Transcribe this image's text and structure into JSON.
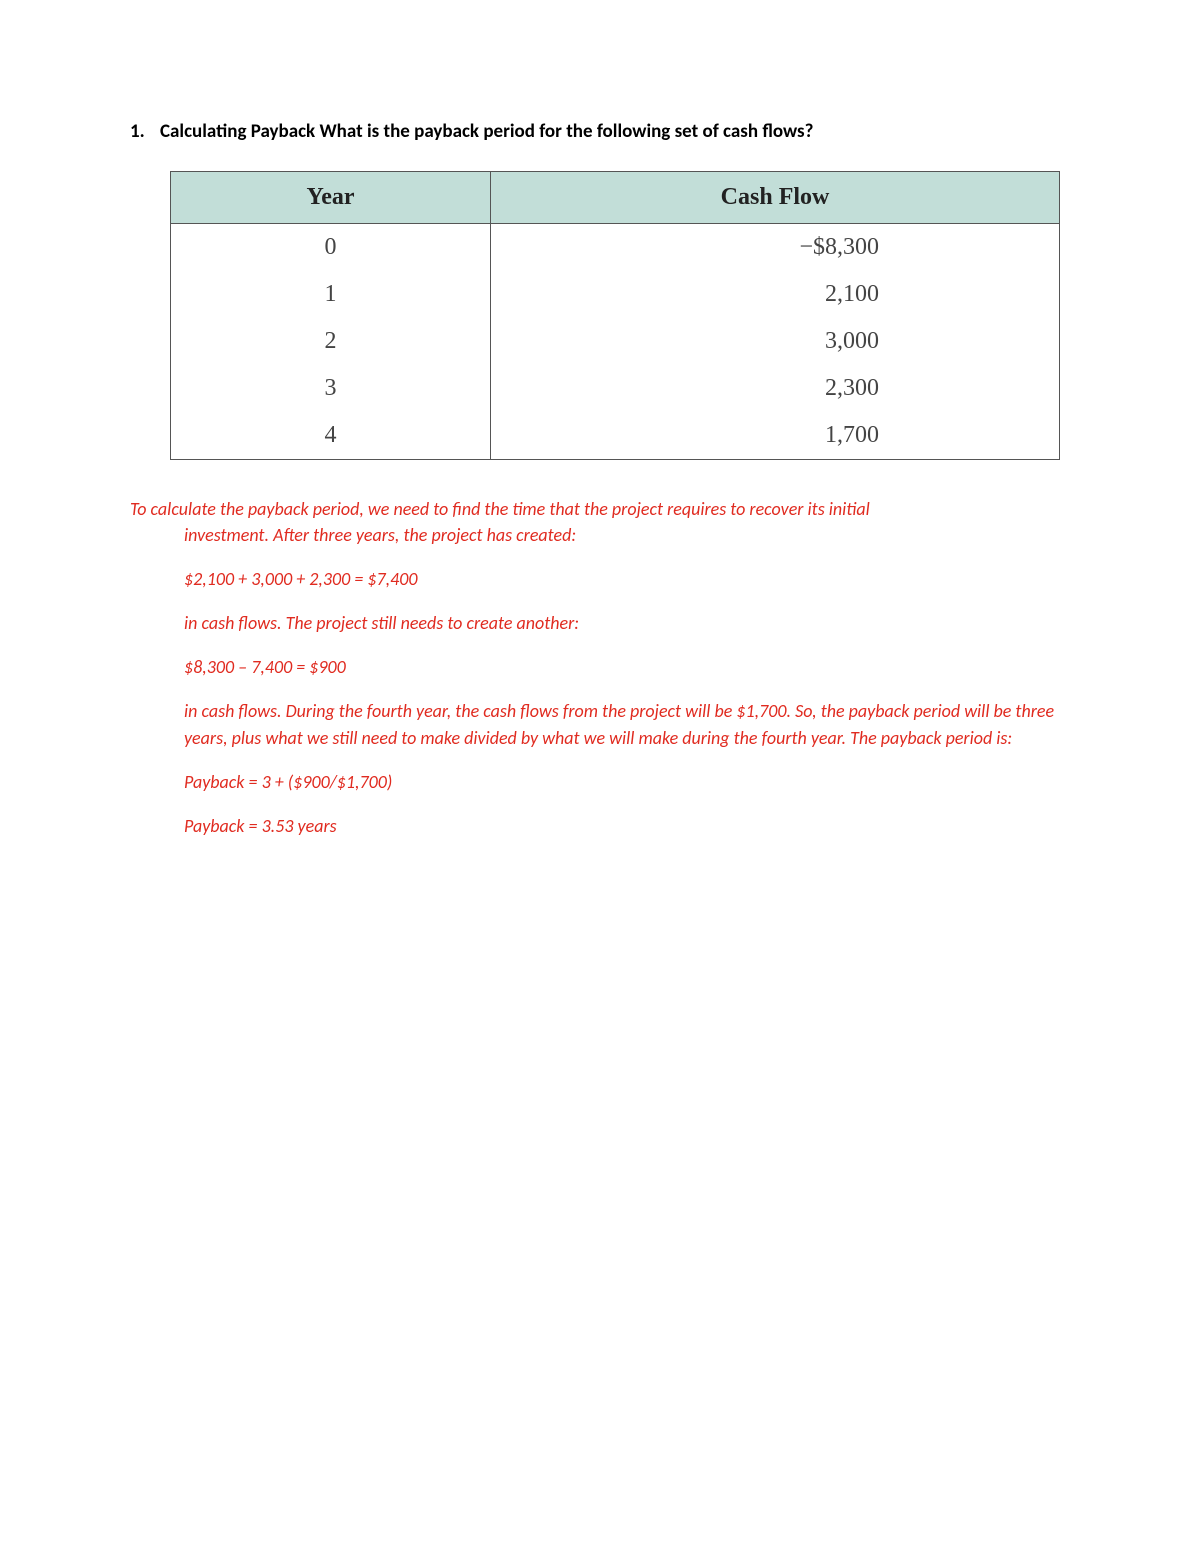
{
  "question": {
    "number": "1.",
    "text": "Calculating Payback What is the payback period for the following set of cash flows?"
  },
  "table": {
    "type": "table",
    "header_bg": "#c2ded8",
    "border_color": "#555555",
    "header_font": "Times New Roman",
    "header_fontsize": 24,
    "body_font": "Times New Roman",
    "body_fontsize": 24,
    "columns": [
      "Year",
      "Cash Flow"
    ],
    "rows": [
      [
        "0",
        "−$8,300"
      ],
      [
        "1",
        "2,100"
      ],
      [
        "2",
        "3,000"
      ],
      [
        "3",
        "2,300"
      ],
      [
        "4",
        "1,700"
      ]
    ],
    "col_widths_pct": [
      36,
      64
    ]
  },
  "solution": {
    "text_color": "#e02b20",
    "fontsize": 18,
    "font_style": "italic",
    "intro_line1": "To calculate the payback period, we need to find the time that the project requires to recover its initial",
    "intro_line2": "investment. After three years, the project has created:",
    "p1": "$2,100 + 3,000 + 2,300 = $7,400",
    "p2": "in cash flows. The project still needs to create another:",
    "p3": "$8,300 – 7,400 = $900",
    "p4": "in cash flows. During the fourth year, the cash flows from the project will be $1,700. So, the payback period will be three years, plus what we still need to make divided by what we will make during the fourth year. The payback period is:",
    "p5": "Payback = 3 + ($900/$1,700)",
    "p6": "Payback = 3.53 years"
  }
}
